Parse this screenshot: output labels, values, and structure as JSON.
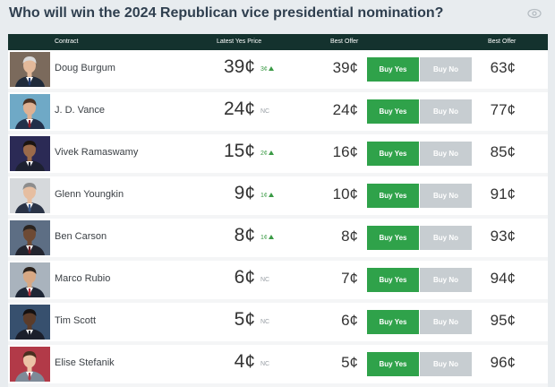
{
  "title": "Who will win the 2024 Republican vice presidential nomination?",
  "header": {
    "contract": "Contract",
    "latest_yes_price": "Latest Yes Price",
    "best_offer_yes": "Best Offer",
    "best_offer_no": "Best Offer"
  },
  "colors": {
    "header_bg": "#14322e",
    "buy_yes": "#2fa24a",
    "buy_no": "#c7cdd1",
    "up_change": "#3a9a45"
  },
  "rows": [
    {
      "name": "Doug Burgum",
      "price": "39¢",
      "change": "3¢",
      "direction": "up",
      "best_yes": "39¢",
      "buy_yes": "Buy Yes",
      "buy_no": "Buy No",
      "best_no": "63¢"
    },
    {
      "name": "J. D. Vance",
      "price": "24¢",
      "change": "NC",
      "direction": "none",
      "best_yes": "24¢",
      "buy_yes": "Buy Yes",
      "buy_no": "Buy No",
      "best_no": "77¢"
    },
    {
      "name": "Vivek Ramaswamy",
      "price": "15¢",
      "change": "2¢",
      "direction": "up",
      "best_yes": "16¢",
      "buy_yes": "Buy Yes",
      "buy_no": "Buy No",
      "best_no": "85¢"
    },
    {
      "name": "Glenn Youngkin",
      "price": "9¢",
      "change": "1¢",
      "direction": "up",
      "best_yes": "10¢",
      "buy_yes": "Buy Yes",
      "buy_no": "Buy No",
      "best_no": "91¢"
    },
    {
      "name": "Ben Carson",
      "price": "8¢",
      "change": "1¢",
      "direction": "up",
      "best_yes": "8¢",
      "buy_yes": "Buy Yes",
      "buy_no": "Buy No",
      "best_no": "93¢"
    },
    {
      "name": "Marco Rubio",
      "price": "6¢",
      "change": "NC",
      "direction": "none",
      "best_yes": "7¢",
      "buy_yes": "Buy Yes",
      "buy_no": "Buy No",
      "best_no": "94¢"
    },
    {
      "name": "Tim Scott",
      "price": "5¢",
      "change": "NC",
      "direction": "none",
      "best_yes": "6¢",
      "buy_yes": "Buy Yes",
      "buy_no": "Buy No",
      "best_no": "95¢"
    },
    {
      "name": "Elise Stefanik",
      "price": "4¢",
      "change": "NC",
      "direction": "none",
      "best_yes": "5¢",
      "buy_yes": "Buy Yes",
      "buy_no": "Buy No",
      "best_no": "96¢"
    }
  ]
}
